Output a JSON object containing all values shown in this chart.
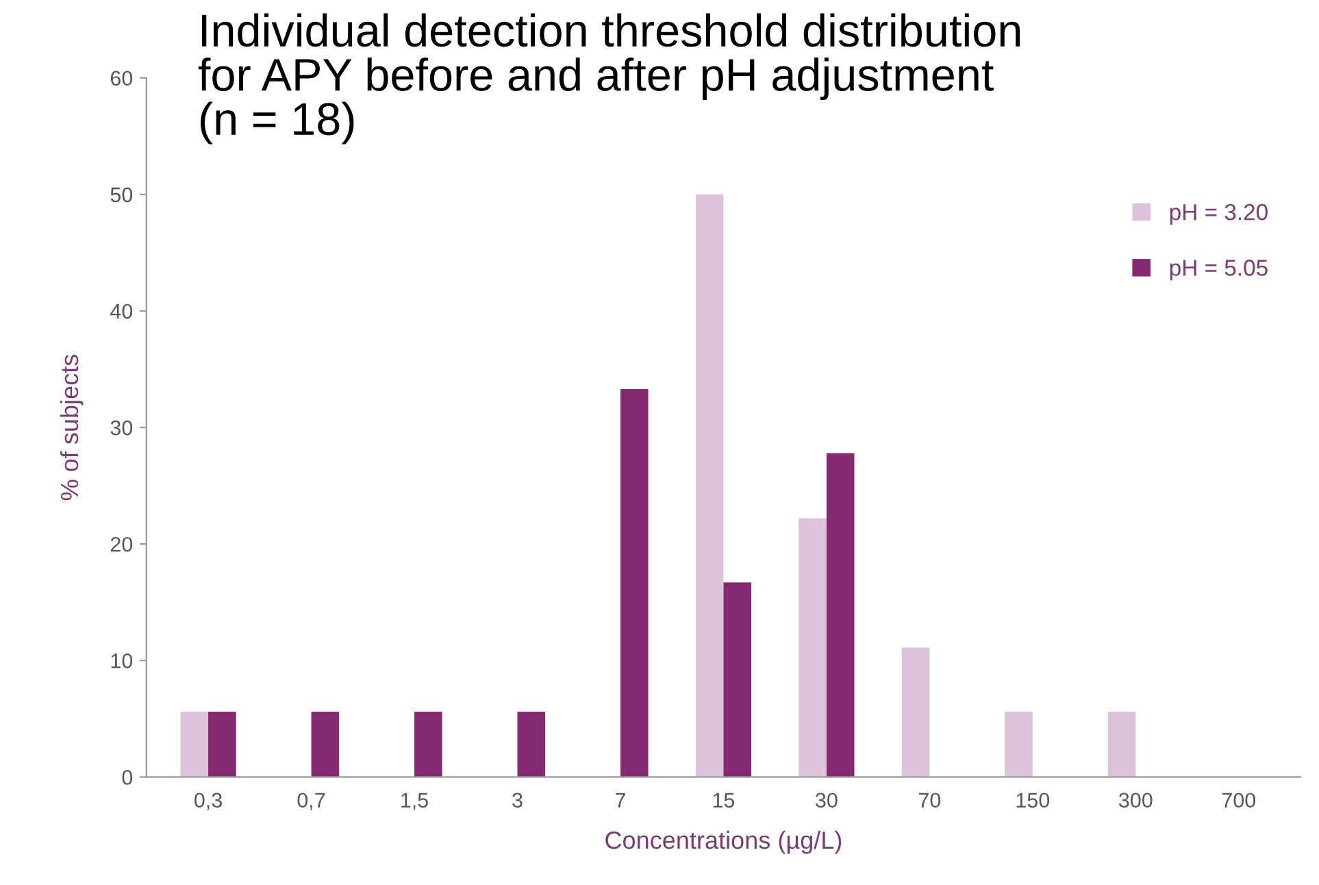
{
  "chart_data": {
    "type": "bar",
    "title": "Individual detection threshold distribution\nfor APY before and after pH adjustment\n(n = 18)",
    "xlabel": "Concentrations (µg/L)",
    "ylabel": "% of subjects",
    "categories": [
      "0,3",
      "0,7",
      "1,5",
      "3",
      "7",
      "15",
      "30",
      "70",
      "150",
      "300",
      "700"
    ],
    "series": [
      {
        "name": "pH = 3.20",
        "color": "#dcc3d9",
        "values": [
          5.6,
          0,
          0,
          0,
          0,
          50,
          22.2,
          11.1,
          5.6,
          5.6,
          0
        ]
      },
      {
        "name": "pH = 5.05",
        "color": "#862a72",
        "values": [
          5.6,
          5.6,
          5.6,
          5.6,
          33.3,
          16.7,
          27.8,
          0,
          0,
          0,
          0
        ]
      }
    ],
    "ylim": [
      0,
      60
    ],
    "yticks": [
      0,
      10,
      20,
      30,
      40,
      50,
      60
    ],
    "grid": false,
    "legend": "top right"
  }
}
